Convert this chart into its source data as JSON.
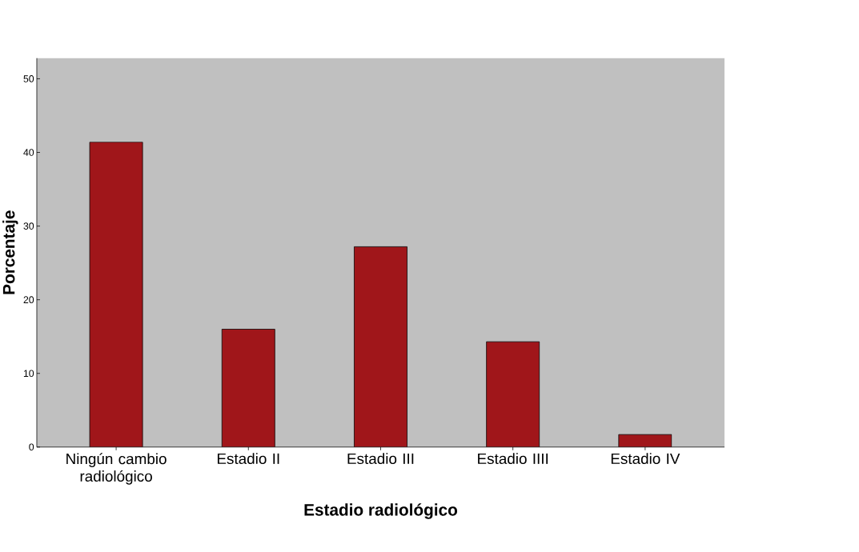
{
  "chart_data": {
    "type": "bar",
    "xlabel": "Estadio radiológico",
    "ylabel": "Porcentaje",
    "categories": [
      "Ningún cambio radiológico",
      "Estadio II",
      "Estadio III",
      "Estadio IIII",
      "Estadio IV"
    ],
    "values": [
      41.4,
      16.0,
      27.2,
      14.3,
      1.7
    ],
    "color": "#a0161a",
    "ylim": [
      0,
      52.8
    ],
    "yticks": [
      0,
      10,
      20,
      30,
      40,
      50
    ],
    "grid": false
  }
}
